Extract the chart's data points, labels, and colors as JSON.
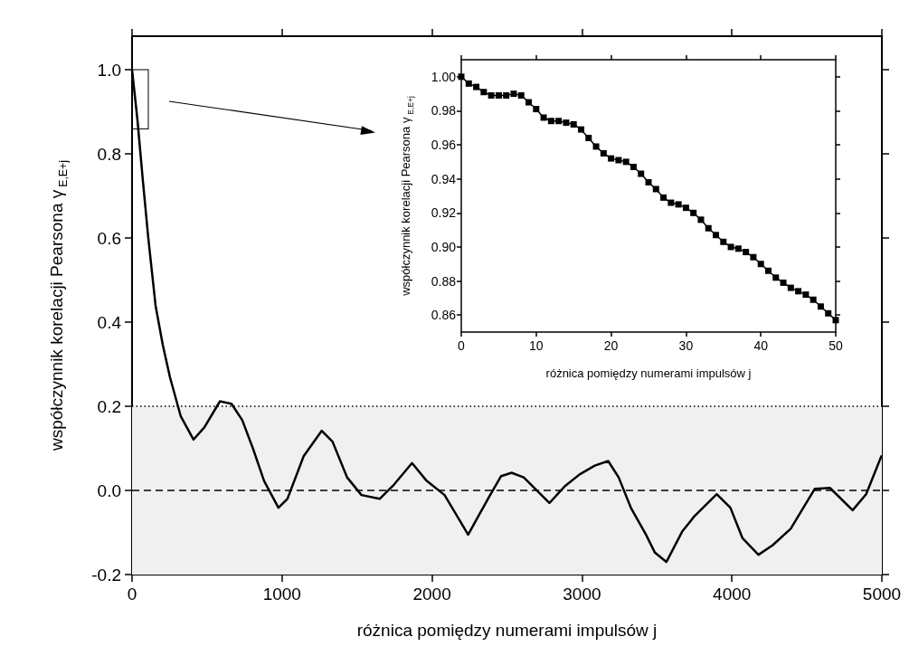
{
  "chart_data": [
    {
      "type": "line",
      "xlabel": "różnica pomiędzy numerami impulsów j",
      "ylabel": "współczynnik korelacji Pearsona γ$_{E,E+j}$",
      "x": [
        0,
        36,
        72,
        108,
        157,
        205,
        253,
        325,
        410,
        482,
        586,
        663,
        735,
        807,
        880,
        976,
        1036,
        1145,
        1265,
        1337,
        1434,
        1530,
        1651,
        1747,
        1867,
        1964,
        2084,
        2241,
        2380,
        2461,
        2531,
        2612,
        2783,
        2883,
        2984,
        3085,
        3175,
        3245,
        3326,
        3427,
        3487,
        3563,
        3668,
        3748,
        3899,
        3990,
        4070,
        4177,
        4272,
        4392,
        4553,
        4654,
        4805,
        4895,
        4996
      ],
      "values": [
        1.0,
        0.881,
        0.737,
        0.601,
        0.439,
        0.346,
        0.269,
        0.176,
        0.121,
        0.15,
        0.212,
        0.206,
        0.167,
        0.099,
        0.023,
        -0.041,
        -0.02,
        0.082,
        0.142,
        0.116,
        0.031,
        -0.011,
        -0.02,
        0.014,
        0.065,
        0.023,
        -0.011,
        -0.105,
        -0.016,
        0.034,
        0.042,
        0.031,
        -0.03,
        0.009,
        0.038,
        0.059,
        0.07,
        0.031,
        -0.041,
        -0.105,
        -0.148,
        -0.17,
        -0.098,
        -0.062,
        -0.009,
        -0.041,
        -0.113,
        -0.153,
        -0.13,
        -0.091,
        0.004,
        0.006,
        -0.047,
        -0.009,
        0.081
      ],
      "color": "#000000",
      "marker": "none",
      "line_style": "solid",
      "grid": false,
      "xlim": [
        0,
        5000
      ],
      "xticks": [
        0,
        1000,
        2000,
        3000,
        4000,
        5000
      ],
      "ylim": [
        -0.2,
        1.08
      ],
      "yticks": [
        {
          "value": -0.2,
          "label": "-0.2"
        },
        {
          "value": 0,
          "label": "0.0"
        },
        {
          "value": 0.2,
          "label": "0.2"
        },
        {
          "value": 0.4,
          "label": "0.4"
        },
        {
          "value": 0.6,
          "label": "0.6"
        },
        {
          "value": 0.8,
          "label": "0.8"
        },
        {
          "value": 1,
          "label": "1.0"
        }
      ],
      "ref_lines": [
        {
          "axis": "y",
          "value": 0,
          "line_style": "dashed",
          "color": "#000000"
        },
        {
          "axis": "y",
          "value": 0.2,
          "line_style": "dotted",
          "color": "#000000"
        }
      ],
      "bands": [
        {
          "axis": "y",
          "from": -0.2,
          "to": 0.2,
          "color": "#f0f0f0"
        }
      ]
    },
    {
      "type": "line",
      "xlabel": "różnica pomiędzy numerami impulsów j",
      "ylabel": "współczynnik korelacji Pearsona γ$_{E,E+j}$",
      "x": [
        0,
        1,
        2,
        3,
        4,
        5,
        6,
        7,
        8,
        9,
        10,
        11,
        12,
        13,
        14,
        15,
        16,
        17,
        18,
        19,
        20,
        21,
        22,
        23,
        24,
        25,
        26,
        27,
        28,
        29,
        30,
        31,
        32,
        33,
        34,
        35,
        36,
        37,
        38,
        39,
        40,
        41,
        42,
        43,
        44,
        45,
        46,
        47,
        48,
        49,
        50
      ],
      "values": [
        1.0,
        0.996,
        0.994,
        0.991,
        0.989,
        0.989,
        0.989,
        0.99,
        0.989,
        0.985,
        0.981,
        0.976,
        0.974,
        0.974,
        0.973,
        0.972,
        0.969,
        0.964,
        0.959,
        0.955,
        0.952,
        0.951,
        0.95,
        0.947,
        0.943,
        0.938,
        0.934,
        0.929,
        0.926,
        0.925,
        0.923,
        0.92,
        0.916,
        0.911,
        0.907,
        0.903,
        0.9,
        0.899,
        0.897,
        0.894,
        0.89,
        0.886,
        0.882,
        0.879,
        0.876,
        0.874,
        0.872,
        0.869,
        0.865,
        0.861,
        0.857
      ],
      "color": "#000000",
      "marker": "square",
      "line_style": "solid",
      "grid": false,
      "xlim": [
        0,
        50
      ],
      "xticks": [
        0,
        10,
        20,
        30,
        40,
        50
      ],
      "ylim": [
        0.85,
        1.01
      ],
      "yticks": [
        {
          "value": 0.86,
          "label": "0.86"
        },
        {
          "value": 0.88,
          "label": "0.88"
        },
        {
          "value": 0.9,
          "label": "0.90"
        },
        {
          "value": 0.92,
          "label": "0.92"
        },
        {
          "value": 0.94,
          "label": "0.94"
        },
        {
          "value": 0.96,
          "label": "0.96"
        },
        {
          "value": 0.98,
          "label": "0.98"
        },
        {
          "value": 1,
          "label": "1.00"
        }
      ]
    }
  ]
}
